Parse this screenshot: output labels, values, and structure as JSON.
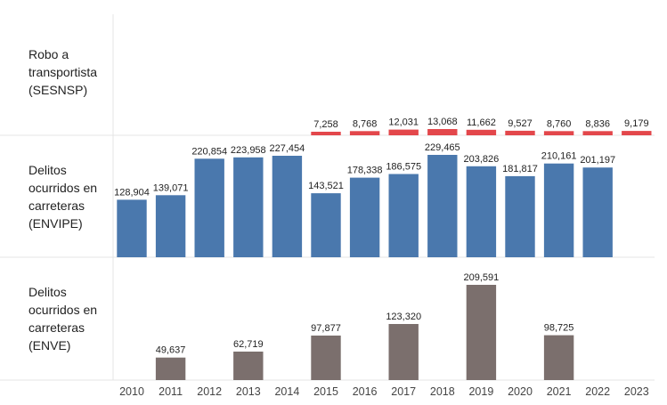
{
  "chart_data": {
    "type": "bar",
    "layout": "stacked-panels",
    "categories": [
      "2010",
      "2011",
      "2012",
      "2013",
      "2014",
      "2015",
      "2016",
      "2017",
      "2018",
      "2019",
      "2020",
      "2021",
      "2022",
      "2023"
    ],
    "series": [
      {
        "name": "Robo a transportista (SESNSP)",
        "label_lines": [
          "Robo a",
          "transportista",
          "(SESNSP)"
        ],
        "color": "#e3474b",
        "values": [
          null,
          null,
          null,
          null,
          null,
          7258,
          8768,
          12031,
          13068,
          11662,
          9527,
          8760,
          8836,
          9179
        ],
        "labels": [
          "",
          "",
          "",
          "",
          "",
          "7,258",
          "8,768",
          "12,031",
          "13,068",
          "11,662",
          "9,527",
          "8,760",
          "8,836",
          "9,179"
        ]
      },
      {
        "name": "Delitos ocurridos en carreteras (ENVIPE)",
        "label_lines": [
          "Delitos",
          "ocurridos en",
          "carreteras",
          "(ENVIPE)"
        ],
        "color": "#4a78ad",
        "values": [
          128904,
          139071,
          220854,
          223958,
          227454,
          143521,
          178338,
          186575,
          229465,
          203826,
          181817,
          210161,
          201197,
          null
        ],
        "labels": [
          "128,904",
          "139,071",
          "220,854",
          "223,958",
          "227,454",
          "143,521",
          "178,338",
          "186,575",
          "229,465",
          "203,826",
          "181,817",
          "210,161",
          "201,197",
          ""
        ]
      },
      {
        "name": "Delitos ocurridos en carreteras (ENVE)",
        "label_lines": [
          "Delitos",
          "ocurridos en",
          "carreteras",
          "(ENVE)"
        ],
        "color": "#7b6f6d",
        "values": [
          null,
          49637,
          null,
          62719,
          null,
          97877,
          null,
          123320,
          null,
          209591,
          null,
          98725,
          null,
          null
        ],
        "labels": [
          "",
          "49,637",
          "",
          "62,719",
          "",
          "97,877",
          "",
          "123,320",
          "",
          "209,591",
          "",
          "98,725",
          "",
          ""
        ]
      }
    ]
  }
}
